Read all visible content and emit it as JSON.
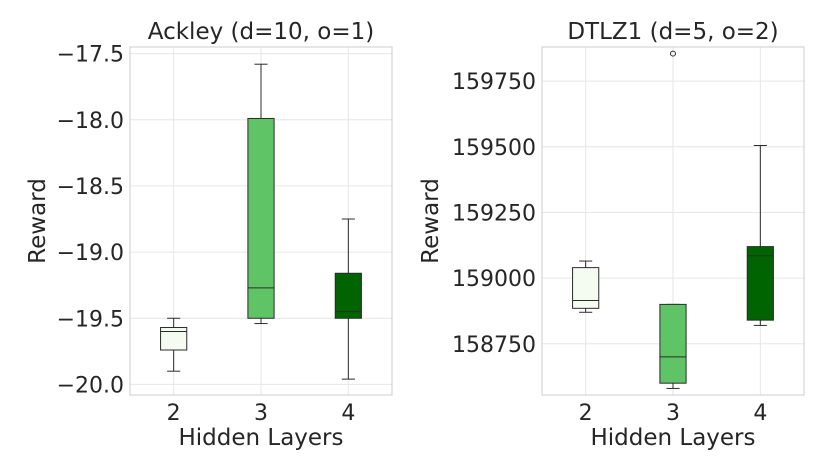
{
  "chart_data": [
    {
      "type": "box",
      "title": "Ackley (d=10, o=1)",
      "xlabel": "Hidden Layers",
      "ylabel": "Reward",
      "categories": [
        "2",
        "3",
        "4"
      ],
      "yticks": [
        "−17.5",
        "−18.0",
        "−18.5",
        "−19.0",
        "−19.5",
        "−20.0"
      ],
      "ytick_values": [
        -17.5,
        -18.0,
        -18.5,
        -19.0,
        -19.5,
        -20.0
      ],
      "ylim": [
        -20.08,
        -17.45
      ],
      "grid": true,
      "boxes": [
        {
          "category": "2",
          "whislo": -19.9,
          "q1": -19.74,
          "med": -19.6,
          "q3": -19.57,
          "whishi": -19.5,
          "fliers": [],
          "color": "#f4fcf1"
        },
        {
          "category": "3",
          "whislo": -19.54,
          "q1": -19.5,
          "med": -19.27,
          "q3": -17.99,
          "whishi": -17.58,
          "fliers": [],
          "color": "#5fc465"
        },
        {
          "category": "4",
          "whislo": -19.96,
          "q1": -19.5,
          "med": -19.45,
          "q3": -19.16,
          "whishi": -18.75,
          "fliers": [],
          "color": "#006400"
        }
      ]
    },
    {
      "type": "box",
      "title": "DTLZ1 (d=5, o=2)",
      "xlabel": "Hidden Layers",
      "ylabel": "Reward",
      "categories": [
        "2",
        "3",
        "4"
      ],
      "yticks": [
        "159750",
        "159500",
        "159250",
        "159000",
        "158750"
      ],
      "ytick_values": [
        159750,
        159500,
        159250,
        159000,
        158750
      ],
      "ylim": [
        158555,
        159880
      ],
      "grid": true,
      "boxes": [
        {
          "category": "2",
          "whislo": 158870,
          "q1": 158885,
          "med": 158915,
          "q3": 159040,
          "whishi": 159065,
          "fliers": [],
          "color": "#f4fcf1"
        },
        {
          "category": "3",
          "whislo": 158580,
          "q1": 158600,
          "med": 158700,
          "q3": 158900,
          "whishi": 158900,
          "fliers": [
            159855
          ],
          "color": "#5fc465"
        },
        {
          "category": "4",
          "whislo": 158820,
          "q1": 158840,
          "med": 159085,
          "q3": 159120,
          "whishi": 159505,
          "fliers": [],
          "color": "#006400"
        }
      ]
    }
  ]
}
